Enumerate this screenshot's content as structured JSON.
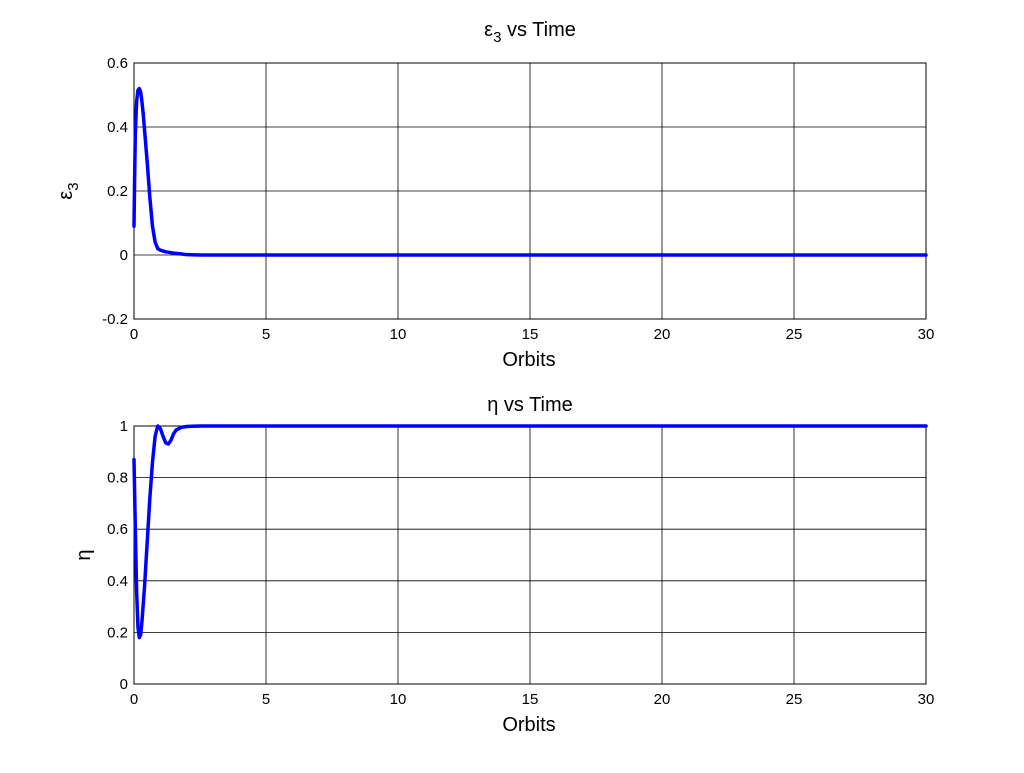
{
  "chart_data": [
    {
      "type": "line",
      "title": "ε",
      "title_sub": "3",
      "title_rest": " vs Time",
      "xlabel": "Orbits",
      "ylabel": "ε",
      "ylabel_sub": "3",
      "xlim": [
        0,
        30
      ],
      "ylim": [
        -0.2,
        0.6
      ],
      "xticks": [
        0,
        5,
        10,
        15,
        20,
        25,
        30
      ],
      "yticks": [
        -0.2,
        0,
        0.2,
        0.4,
        0.6
      ],
      "xtick_labels": [
        "0",
        "5",
        "10",
        "15",
        "20",
        "25",
        "30"
      ],
      "ytick_labels": [
        "-0.2",
        "0",
        "0.2",
        "0.4",
        "0.6"
      ],
      "grid": true,
      "series": [
        {
          "color": "#0000ff",
          "x": [
            0,
            0.02,
            0.05,
            0.1,
            0.15,
            0.2,
            0.25,
            0.3,
            0.35,
            0.4,
            0.5,
            0.6,
            0.7,
            0.8,
            0.9,
            1.0,
            1.2,
            1.5,
            1.8,
            2.0,
            2.5,
            3,
            5,
            10,
            15,
            20,
            25,
            30
          ],
          "y": [
            0.09,
            0.22,
            0.38,
            0.48,
            0.515,
            0.52,
            0.51,
            0.48,
            0.44,
            0.39,
            0.29,
            0.18,
            0.09,
            0.04,
            0.02,
            0.015,
            0.01,
            0.006,
            0.003,
            0.001,
            0,
            0,
            0,
            0,
            0,
            0,
            0,
            0
          ]
        }
      ]
    },
    {
      "type": "line",
      "title": "η",
      "title_rest": " vs Time",
      "xlabel": "Orbits",
      "ylabel": "η",
      "xlim": [
        0,
        30
      ],
      "ylim": [
        0,
        1
      ],
      "xticks": [
        0,
        5,
        10,
        15,
        20,
        25,
        30
      ],
      "yticks": [
        0,
        0.2,
        0.4,
        0.6,
        0.8,
        1
      ],
      "xtick_labels": [
        "0",
        "5",
        "10",
        "15",
        "20",
        "25",
        "30"
      ],
      "ytick_labels": [
        "0",
        "0.2",
        "0.4",
        "0.6",
        "0.8",
        "1"
      ],
      "grid": true,
      "series": [
        {
          "color": "#0000ff",
          "x": [
            0,
            0.05,
            0.1,
            0.15,
            0.2,
            0.25,
            0.3,
            0.4,
            0.5,
            0.6,
            0.7,
            0.8,
            0.9,
            1.0,
            1.1,
            1.2,
            1.3,
            1.4,
            1.5,
            1.6,
            1.8,
            2.0,
            2.2,
            2.5,
            3,
            5,
            10,
            15,
            20,
            25,
            30
          ],
          "y": [
            0.87,
            0.6,
            0.36,
            0.22,
            0.18,
            0.19,
            0.24,
            0.38,
            0.55,
            0.72,
            0.86,
            0.96,
            1.0,
            0.99,
            0.96,
            0.935,
            0.93,
            0.945,
            0.97,
            0.985,
            0.995,
            0.998,
            0.999,
            1.0,
            1.0,
            1.0,
            1.0,
            1.0,
            1.0,
            1.0,
            1.0
          ]
        }
      ]
    }
  ]
}
